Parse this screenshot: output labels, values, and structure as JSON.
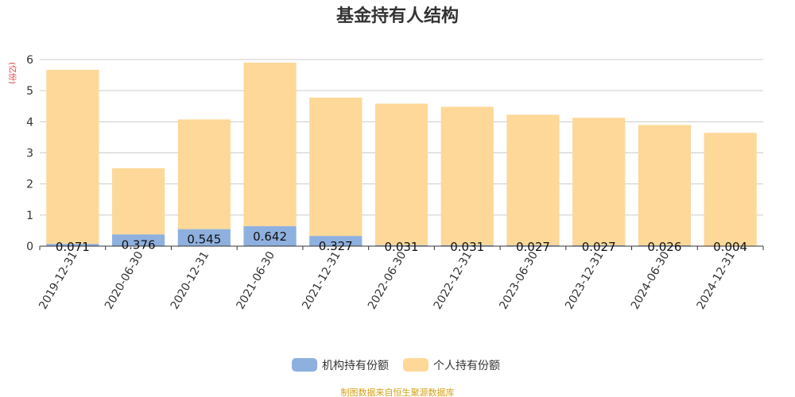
{
  "chart_data": {
    "type": "bar",
    "stacked": true,
    "title": "基金持有人结构",
    "ylabel": "(亿份)",
    "xlabel": "",
    "ylim": [
      0,
      6
    ],
    "yticks": [
      "0",
      "1",
      "2",
      "3",
      "4",
      "5",
      "6"
    ],
    "categories": [
      "2019-12-31",
      "2020-06-30",
      "2020-12-31",
      "2021-06-30",
      "2021-12-31",
      "2022-06-30",
      "2022-12-31",
      "2023-06-30",
      "2023-12-31",
      "2024-06-30",
      "2024-12-31"
    ],
    "series": [
      {
        "name": "机构持有份额",
        "color": "#8eb0de",
        "values": [
          0.071,
          0.376,
          0.545,
          0.642,
          0.327,
          0.031,
          0.031,
          0.027,
          0.027,
          0.026,
          0.004
        ],
        "labels": [
          "0.071",
          "0.376",
          "0.545",
          "0.642",
          "0.327",
          "0.031",
          "0.031",
          "0.027",
          "0.027",
          "0.026",
          "0.004"
        ]
      },
      {
        "name": "个人持有份额",
        "color": "#fdd898",
        "values": [
          5.6,
          2.13,
          3.53,
          5.26,
          4.45,
          4.55,
          4.45,
          4.2,
          4.1,
          3.87,
          3.64
        ]
      }
    ],
    "legend_position": "bottom-center",
    "source": "制图数据来自恒生聚源数据库"
  }
}
